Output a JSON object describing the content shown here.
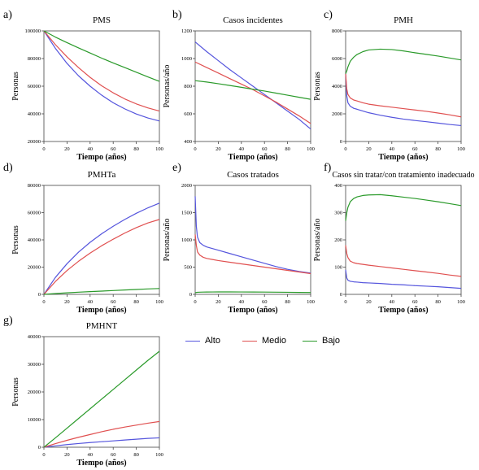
{
  "chart_data": [
    {
      "type": "line",
      "panel_label": "a)",
      "title": "PMS",
      "xlabel": "Tiempo (años)",
      "ylabel": "Personas",
      "xlim": [
        0,
        100
      ],
      "ylim": [
        20000,
        100000
      ],
      "xticks": [
        "0",
        "20",
        "40",
        "60",
        "80",
        "100"
      ],
      "yticks": [
        "20000",
        "40000",
        "60000",
        "80000",
        "100000"
      ],
      "x": [
        0,
        10,
        20,
        30,
        40,
        50,
        60,
        70,
        80,
        90,
        100
      ],
      "series": [
        {
          "name": "Alto",
          "values": [
            100000,
            87300,
            76500,
            67500,
            60000,
            53500,
            48000,
            43600,
            39900,
            37000,
            34800
          ]
        },
        {
          "name": "Medio",
          "values": [
            100000,
            90000,
            81200,
            73400,
            66400,
            60300,
            55200,
            50800,
            47200,
            44300,
            42000
          ]
        },
        {
          "name": "Bajo",
          "values": [
            100000,
            95500,
            91500,
            87700,
            84000,
            80300,
            76800,
            73500,
            70100,
            66700,
            63500
          ]
        }
      ]
    },
    {
      "type": "line",
      "panel_label": "b)",
      "title": "Casos incidentes",
      "xlabel": "Tiempo (años)",
      "ylabel": "Personas/año",
      "xlim": [
        0,
        100
      ],
      "ylim": [
        400,
        1200
      ],
      "xticks": [
        "0",
        "20",
        "40",
        "60",
        "80",
        "100"
      ],
      "yticks": [
        "400",
        "600",
        "800",
        "1000",
        "1200"
      ],
      "x": [
        0,
        10,
        20,
        30,
        40,
        50,
        60,
        70,
        80,
        90,
        100
      ],
      "series": [
        {
          "name": "Alto",
          "values": [
            1120,
            1050,
            985,
            920,
            860,
            800,
            740,
            680,
            620,
            560,
            490
          ]
        },
        {
          "name": "Medio",
          "values": [
            975,
            935,
            895,
            855,
            815,
            775,
            730,
            685,
            635,
            585,
            530
          ]
        },
        {
          "name": "Bajo",
          "values": [
            840,
            830,
            818,
            805,
            792,
            778,
            765,
            750,
            735,
            720,
            705
          ]
        }
      ]
    },
    {
      "type": "line",
      "panel_label": "c)",
      "title": "PMH",
      "xlabel": "Tiempo (años)",
      "ylabel": "Personas",
      "xlim": [
        0,
        100
      ],
      "ylim": [
        0,
        8000
      ],
      "xticks": [
        "0",
        "20",
        "40",
        "60",
        "80",
        "100"
      ],
      "yticks": [
        "0",
        "2000",
        "4000",
        "6000",
        "8000"
      ],
      "x": [
        0,
        1,
        2,
        4,
        7,
        10,
        15,
        20,
        30,
        40,
        50,
        60,
        70,
        80,
        90,
        100
      ],
      "series": [
        {
          "name": "Alto",
          "values": [
            4900,
            3300,
            2800,
            2550,
            2400,
            2330,
            2200,
            2080,
            1900,
            1750,
            1620,
            1520,
            1430,
            1330,
            1230,
            1150
          ]
        },
        {
          "name": "Medio",
          "values": [
            4900,
            3800,
            3400,
            3150,
            3000,
            2930,
            2800,
            2700,
            2580,
            2480,
            2380,
            2280,
            2180,
            2060,
            1930,
            1780
          ]
        },
        {
          "name": "Bajo",
          "values": [
            4900,
            5100,
            5400,
            5800,
            6100,
            6300,
            6500,
            6620,
            6680,
            6650,
            6550,
            6420,
            6300,
            6180,
            6040,
            5900
          ]
        }
      ]
    },
    {
      "type": "line",
      "panel_label": "d)",
      "title": "PMHTa",
      "xlabel": "Tiempo (años)",
      "ylabel": "Personas",
      "xlim": [
        0,
        100
      ],
      "ylim": [
        0,
        80000
      ],
      "xticks": [
        "0",
        "20",
        "40",
        "60",
        "80",
        "100"
      ],
      "yticks": [
        "0",
        "20000",
        "40000",
        "60000",
        "80000"
      ],
      "x": [
        0,
        10,
        20,
        30,
        40,
        50,
        60,
        70,
        80,
        90,
        100
      ],
      "series": [
        {
          "name": "Alto",
          "values": [
            0,
            12500,
            22500,
            31000,
            38200,
            44500,
            50000,
            55000,
            59500,
            63500,
            67000
          ]
        },
        {
          "name": "Medio",
          "values": [
            0,
            9500,
            17500,
            24300,
            30300,
            35700,
            40500,
            45000,
            49000,
            52400,
            55000
          ]
        },
        {
          "name": "Bajo",
          "values": [
            0,
            600,
            1100,
            1600,
            2000,
            2400,
            2800,
            3200,
            3600,
            4000,
            4300
          ]
        }
      ]
    },
    {
      "type": "line",
      "panel_label": "e)",
      "title": "Casos tratados",
      "xlabel": "Tiempo (años)",
      "ylabel": "Personas/año",
      "xlim": [
        0,
        100
      ],
      "ylim": [
        0,
        2000
      ],
      "xticks": [
        "0",
        "20",
        "40",
        "60",
        "80",
        "100"
      ],
      "yticks": [
        "0",
        "500",
        "1000",
        "1500",
        "2000"
      ],
      "x": [
        0,
        1,
        2,
        4,
        7,
        10,
        15,
        20,
        30,
        40,
        50,
        60,
        70,
        80,
        90,
        100
      ],
      "series": [
        {
          "name": "Alto",
          "values": [
            1800,
            1250,
            1050,
            950,
            900,
            870,
            840,
            810,
            750,
            690,
            630,
            570,
            510,
            460,
            420,
            390
          ]
        },
        {
          "name": "Medio",
          "values": [
            1100,
            900,
            780,
            720,
            680,
            660,
            640,
            620,
            590,
            560,
            530,
            500,
            470,
            440,
            410,
            380
          ]
        },
        {
          "name": "Bajo",
          "values": [
            30,
            35,
            38,
            40,
            42,
            43,
            44,
            45,
            45,
            44,
            43,
            42,
            40,
            38,
            36,
            34
          ]
        }
      ]
    },
    {
      "type": "line",
      "panel_label": "f)",
      "title": "Casos sin tratar/con tratamiento inadecuado",
      "xlabel": "Tiempo (años)",
      "ylabel": "Personas/año",
      "xlim": [
        0,
        100
      ],
      "ylim": [
        0,
        400
      ],
      "xticks": [
        "0",
        "20",
        "40",
        "60",
        "80",
        "100"
      ],
      "yticks": [
        "0",
        "100",
        "200",
        "300",
        "400"
      ],
      "x": [
        0,
        1,
        2,
        4,
        7,
        10,
        15,
        20,
        30,
        40,
        50,
        60,
        70,
        80,
        90,
        100
      ],
      "series": [
        {
          "name": "Alto",
          "values": [
            90,
            60,
            52,
            48,
            46,
            45,
            43,
            42,
            40,
            37,
            35,
            32,
            30,
            28,
            25,
            22
          ]
        },
        {
          "name": "Medio",
          "values": [
            180,
            150,
            135,
            122,
            116,
            113,
            110,
            107,
            102,
            97,
            92,
            87,
            82,
            77,
            71,
            66
          ]
        },
        {
          "name": "Bajo",
          "values": [
            270,
            300,
            320,
            340,
            352,
            358,
            363,
            365,
            366,
            362,
            357,
            352,
            346,
            340,
            333,
            326
          ]
        }
      ]
    },
    {
      "type": "line",
      "panel_label": "g)",
      "title": "PMHNT",
      "xlabel": "Tiempo (años)",
      "ylabel": "Personas",
      "xlim": [
        0,
        100
      ],
      "ylim": [
        0,
        40000
      ],
      "xticks": [
        "0",
        "20",
        "40",
        "60",
        "80",
        "100"
      ],
      "yticks": [
        "0",
        "10000",
        "20000",
        "30000",
        "40000"
      ],
      "x": [
        0,
        10,
        20,
        30,
        40,
        50,
        60,
        70,
        80,
        90,
        100
      ],
      "series": [
        {
          "name": "Alto",
          "values": [
            0,
            500,
            950,
            1350,
            1700,
            2000,
            2300,
            2600,
            2900,
            3200,
            3400
          ]
        },
        {
          "name": "Medio",
          "values": [
            0,
            1300,
            2500,
            3600,
            4600,
            5600,
            6500,
            7300,
            8000,
            8700,
            9300
          ]
        },
        {
          "name": "Bajo",
          "values": [
            0,
            3400,
            6900,
            10400,
            13900,
            17400,
            20900,
            24400,
            27900,
            31400,
            34700
          ]
        }
      ]
    }
  ],
  "legend": {
    "items": [
      {
        "label": "Alto",
        "color": "#5555dd"
      },
      {
        "label": "Medio",
        "color": "#e05050"
      },
      {
        "label": "Bajo",
        "color": "#2a9a2a"
      }
    ]
  },
  "colors": {
    "Alto": "#5555dd",
    "Medio": "#e05050",
    "Bajo": "#2a9a2a",
    "axis": "#444444"
  }
}
